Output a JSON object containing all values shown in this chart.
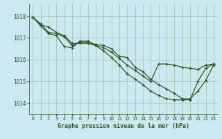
{
  "title": "Graphe pression niveau de la mer (hPa)",
  "bg_color": "#cde8f0",
  "plot_bg_color": "#cde8f0",
  "grid_color": "#a8ccbe",
  "line_color": "#2d5a27",
  "marker_color": "#2d5a27",
  "xlim": [
    -0.5,
    23.5
  ],
  "ylim": [
    1013.5,
    1018.55
  ],
  "yticks": [
    1014,
    1015,
    1016,
    1017,
    1018
  ],
  "xticks": [
    0,
    1,
    2,
    3,
    4,
    5,
    6,
    7,
    8,
    9,
    10,
    11,
    12,
    13,
    14,
    15,
    16,
    17,
    18,
    19,
    20,
    21,
    22,
    23
  ],
  "series": [
    [
      1017.95,
      1017.65,
      1017.25,
      1017.2,
      1017.05,
      1016.65,
      1016.8,
      1016.8,
      1016.7,
      1016.65,
      1016.5,
      1016.15,
      1016.1,
      1015.65,
      1015.45,
      1015.1,
      1014.85,
      1014.65,
      1014.45,
      1014.2,
      1014.2,
      1014.55,
      1015.05,
      1015.75
    ],
    [
      1017.95,
      1017.55,
      1017.2,
      1017.1,
      1016.6,
      1016.55,
      1016.85,
      1016.85,
      1016.65,
      1016.4,
      1016.1,
      1015.75,
      1015.35,
      1015.1,
      1014.85,
      1014.55,
      1014.35,
      1014.2,
      1014.15,
      1014.15,
      1014.15,
      1015.0,
      1015.6,
      1015.8
    ],
    [
      1017.95,
      1017.6,
      1017.5,
      1017.25,
      1017.1,
      1016.75,
      1016.75,
      1016.75,
      1016.65,
      1016.55,
      1016.35,
      1016.05,
      1015.75,
      1015.5,
      1015.25,
      1015.0,
      1015.8,
      1015.8,
      1015.75,
      1015.65,
      1015.6,
      1015.55,
      1015.75,
      1015.8
    ]
  ]
}
